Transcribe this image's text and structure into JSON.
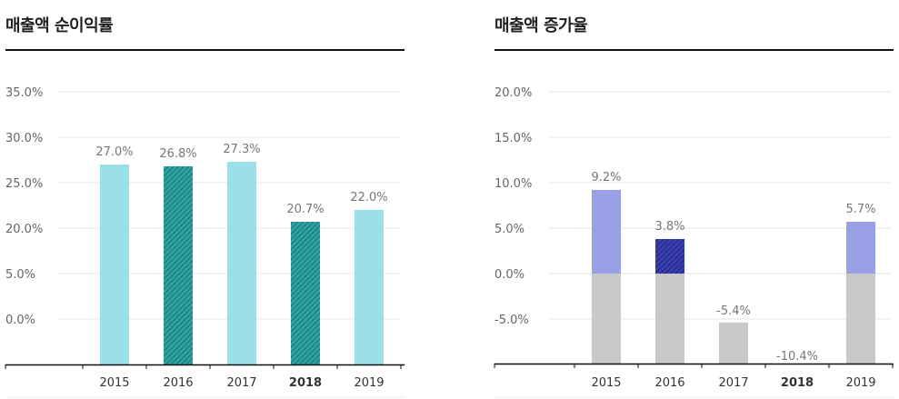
{
  "chart_data": [
    {
      "type": "bar",
      "title": "매출액 순이익률",
      "categories": [
        "2015",
        "2016",
        "2017",
        "2018",
        "2019"
      ],
      "values": [
        27.0,
        26.8,
        27.3,
        20.7,
        22.0
      ],
      "value_labels": [
        "27.0%",
        "26.8%",
        "27.3%",
        "20.7%",
        "22.0%"
      ],
      "y_tick_labels": [
        "35.0%",
        "30.0%",
        "25.0%",
        "20.0%",
        "5.0%",
        "0.0%"
      ],
      "bar_styles": [
        "solid",
        "hatched",
        "solid",
        "hatched",
        "solid"
      ],
      "highlight_category": "2018",
      "xlabel": "",
      "ylabel": "",
      "colors": {
        "solid": "#9ae0e6",
        "hatch_bg": "#2fa3a3",
        "hatch_line": "#1a6f6f"
      }
    },
    {
      "type": "bar",
      "title": "매출액 증가율",
      "categories": [
        "2015",
        "2016",
        "2017",
        "2018",
        "2019"
      ],
      "values": [
        9.2,
        3.8,
        -5.4,
        -10.4,
        5.7
      ],
      "value_labels": [
        "9.2%",
        "3.8%",
        "-5.4%",
        "-10.4%",
        "5.7%"
      ],
      "y_tick_labels": [
        "20.0%",
        "15.0%",
        "10.0%",
        "5.0%",
        "0.0%",
        "-5.0%"
      ],
      "ylim": [
        -10,
        20
      ],
      "bar_styles": [
        "solid",
        "hatched",
        "solid",
        "solid",
        "solid"
      ],
      "highlight_category": "2018",
      "xlabel": "",
      "ylabel": "",
      "colors": {
        "positive": "#9aa0e6",
        "hatch_bg": "#3a3fb0",
        "hatch_line": "#1e2380",
        "base": "#c8c8c8"
      }
    }
  ]
}
